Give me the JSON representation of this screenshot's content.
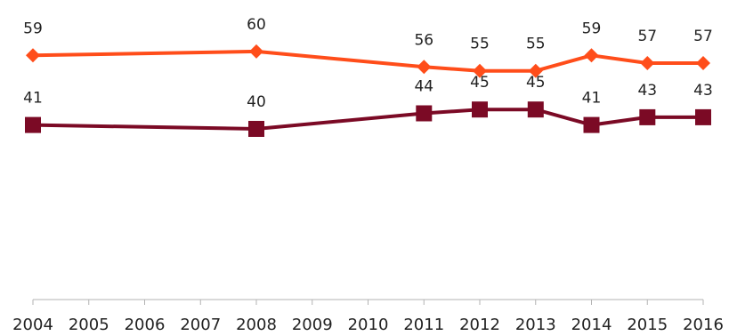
{
  "chart_data": {
    "type": "line",
    "title": "",
    "xlabel": "",
    "ylabel": "",
    "x": [
      2004,
      2005,
      2006,
      2007,
      2008,
      2009,
      2010,
      2011,
      2012,
      2013,
      2014,
      2015,
      2016
    ],
    "x_tick_labels": [
      "2004",
      "2005",
      "2006",
      "2007",
      "2008",
      "2009",
      "2010",
      "2011",
      "2012",
      "2013",
      "2014",
      "2015",
      "2016"
    ],
    "ylim": [
      0,
      100
    ],
    "grid": false,
    "legend": "none",
    "series": [
      {
        "color": "#ff4d1a",
        "marker": "diamond",
        "points": [
          {
            "x": 2004,
            "y": 59,
            "label": "59"
          },
          {
            "x": 2008,
            "y": 60,
            "label": "60"
          },
          {
            "x": 2011,
            "y": 56,
            "label": "56"
          },
          {
            "x": 2012,
            "y": 55,
            "label": "55"
          },
          {
            "x": 2013,
            "y": 55,
            "label": "55"
          },
          {
            "x": 2014,
            "y": 59,
            "label": "59"
          },
          {
            "x": 2015,
            "y": 57,
            "label": "57"
          },
          {
            "x": 2016,
            "y": 57,
            "label": "57"
          }
        ]
      },
      {
        "color": "#7b0a25",
        "marker": "square",
        "points": [
          {
            "x": 2004,
            "y": 41,
            "label": "41"
          },
          {
            "x": 2008,
            "y": 40,
            "label": "40"
          },
          {
            "x": 2011,
            "y": 44,
            "label": "44"
          },
          {
            "x": 2012,
            "y": 45,
            "label": "45"
          },
          {
            "x": 2013,
            "y": 45,
            "label": "45"
          },
          {
            "x": 2014,
            "y": 41,
            "label": "41"
          },
          {
            "x": 2015,
            "y": 43,
            "label": "43"
          },
          {
            "x": 2016,
            "y": 43,
            "label": "43"
          }
        ]
      }
    ],
    "axis_color": "#b3b3b3"
  }
}
